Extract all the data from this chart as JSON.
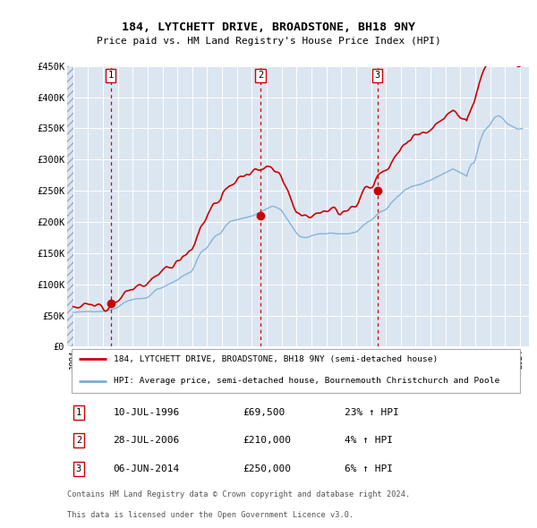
{
  "title": "184, LYTCHETT DRIVE, BROADSTONE, BH18 9NY",
  "subtitle": "Price paid vs. HM Land Registry's House Price Index (HPI)",
  "ylim": [
    0,
    450000
  ],
  "yticks": [
    0,
    50000,
    100000,
    150000,
    200000,
    250000,
    300000,
    350000,
    400000,
    450000
  ],
  "ytick_labels": [
    "£0",
    "£50K",
    "£100K",
    "£150K",
    "£200K",
    "£250K",
    "£300K",
    "£350K",
    "£400K",
    "£450K"
  ],
  "xlim_start": 1993.6,
  "xlim_end": 2024.6,
  "transactions": [
    {
      "num": 1,
      "year": 1996.53,
      "price": 69500,
      "label": "10-JUL-1996",
      "price_str": "£69,500",
      "hpi_str": "23% ↑ HPI"
    },
    {
      "num": 2,
      "year": 2006.57,
      "price": 210000,
      "label": "28-JUL-2006",
      "price_str": "£210,000",
      "hpi_str": "4% ↑ HPI"
    },
    {
      "num": 3,
      "year": 2014.43,
      "price": 250000,
      "label": "06-JUN-2014",
      "price_str": "£250,000",
      "hpi_str": "6% ↑ HPI"
    }
  ],
  "red_line_color": "#cc0000",
  "blue_line_color": "#7bafd4",
  "bg_color": "#dce6f1",
  "grid_color": "#ffffff",
  "legend_label_red": "184, LYTCHETT DRIVE, BROADSTONE, BH18 9NY (semi-detached house)",
  "legend_label_blue": "HPI: Average price, semi-detached house, Bournemouth Christchurch and Poole",
  "footer1": "Contains HM Land Registry data © Crown copyright and database right 2024.",
  "footer2": "This data is licensed under the Open Government Licence v3.0.",
  "hpi_years": [
    1994.0,
    1994.08,
    1994.17,
    1994.25,
    1994.33,
    1994.42,
    1994.5,
    1994.58,
    1994.67,
    1994.75,
    1994.83,
    1994.92,
    1995.0,
    1995.08,
    1995.17,
    1995.25,
    1995.33,
    1995.42,
    1995.5,
    1995.58,
    1995.67,
    1995.75,
    1995.83,
    1995.92,
    1996.0,
    1996.08,
    1996.17,
    1996.25,
    1996.33,
    1996.42,
    1996.5,
    1996.58,
    1996.67,
    1996.75,
    1996.83,
    1996.92,
    1997.0,
    1997.08,
    1997.17,
    1997.25,
    1997.33,
    1997.42,
    1997.5,
    1997.58,
    1997.67,
    1997.75,
    1997.83,
    1997.92,
    1998.0,
    1998.08,
    1998.17,
    1998.25,
    1998.33,
    1998.42,
    1998.5,
    1998.58,
    1998.67,
    1998.75,
    1998.83,
    1998.92,
    1999.0,
    1999.08,
    1999.17,
    1999.25,
    1999.33,
    1999.42,
    1999.5,
    1999.58,
    1999.67,
    1999.75,
    1999.83,
    1999.92,
    2000.0,
    2000.08,
    2000.17,
    2000.25,
    2000.33,
    2000.42,
    2000.5,
    2000.58,
    2000.67,
    2000.75,
    2000.83,
    2000.92,
    2001.0,
    2001.08,
    2001.17,
    2001.25,
    2001.33,
    2001.42,
    2001.5,
    2001.58,
    2001.67,
    2001.75,
    2001.83,
    2001.92,
    2002.0,
    2002.08,
    2002.17,
    2002.25,
    2002.33,
    2002.42,
    2002.5,
    2002.58,
    2002.67,
    2002.75,
    2002.83,
    2002.92,
    2003.0,
    2003.08,
    2003.17,
    2003.25,
    2003.33,
    2003.42,
    2003.5,
    2003.58,
    2003.67,
    2003.75,
    2003.83,
    2003.92,
    2004.0,
    2004.08,
    2004.17,
    2004.25,
    2004.33,
    2004.42,
    2004.5,
    2004.58,
    2004.67,
    2004.75,
    2004.83,
    2004.92,
    2005.0,
    2005.08,
    2005.17,
    2005.25,
    2005.33,
    2005.42,
    2005.5,
    2005.58,
    2005.67,
    2005.75,
    2005.83,
    2005.92,
    2006.0,
    2006.08,
    2006.17,
    2006.25,
    2006.33,
    2006.42,
    2006.5,
    2006.58,
    2006.67,
    2006.75,
    2006.83,
    2006.92,
    2007.0,
    2007.08,
    2007.17,
    2007.25,
    2007.33,
    2007.42,
    2007.5,
    2007.58,
    2007.67,
    2007.75,
    2007.83,
    2007.92,
    2008.0,
    2008.08,
    2008.17,
    2008.25,
    2008.33,
    2008.42,
    2008.5,
    2008.58,
    2008.67,
    2008.75,
    2008.83,
    2008.92,
    2009.0,
    2009.08,
    2009.17,
    2009.25,
    2009.33,
    2009.42,
    2009.5,
    2009.58,
    2009.67,
    2009.75,
    2009.83,
    2009.92,
    2010.0,
    2010.08,
    2010.17,
    2010.25,
    2010.33,
    2010.42,
    2010.5,
    2010.58,
    2010.67,
    2010.75,
    2010.83,
    2010.92,
    2011.0,
    2011.08,
    2011.17,
    2011.25,
    2011.33,
    2011.42,
    2011.5,
    2011.58,
    2011.67,
    2011.75,
    2011.83,
    2011.92,
    2012.0,
    2012.08,
    2012.17,
    2012.25,
    2012.33,
    2012.42,
    2012.5,
    2012.58,
    2012.67,
    2012.75,
    2012.83,
    2012.92,
    2013.0,
    2013.08,
    2013.17,
    2013.25,
    2013.33,
    2013.42,
    2013.5,
    2013.58,
    2013.67,
    2013.75,
    2013.83,
    2013.92,
    2014.0,
    2014.08,
    2014.17,
    2014.25,
    2014.33,
    2014.42,
    2014.5,
    2014.58,
    2014.67,
    2014.75,
    2014.83,
    2014.92,
    2015.0,
    2015.08,
    2015.17,
    2015.25,
    2015.33,
    2015.42,
    2015.5,
    2015.58,
    2015.67,
    2015.75,
    2015.83,
    2015.92,
    2016.0,
    2016.08,
    2016.17,
    2016.25,
    2016.33,
    2016.42,
    2016.5,
    2016.58,
    2016.67,
    2016.75,
    2016.83,
    2016.92,
    2017.0,
    2017.08,
    2017.17,
    2017.25,
    2017.33,
    2017.42,
    2017.5,
    2017.58,
    2017.67,
    2017.75,
    2017.83,
    2017.92,
    2018.0,
    2018.08,
    2018.17,
    2018.25,
    2018.33,
    2018.42,
    2018.5,
    2018.58,
    2018.67,
    2018.75,
    2018.83,
    2018.92,
    2019.0,
    2019.08,
    2019.17,
    2019.25,
    2019.33,
    2019.42,
    2019.5,
    2019.58,
    2019.67,
    2019.75,
    2019.83,
    2019.92,
    2020.0,
    2020.08,
    2020.17,
    2020.25,
    2020.33,
    2020.42,
    2020.5,
    2020.58,
    2020.67,
    2020.75,
    2020.83,
    2020.92,
    2021.0,
    2021.08,
    2021.17,
    2021.25,
    2021.33,
    2021.42,
    2021.5,
    2021.58,
    2021.67,
    2021.75,
    2021.83,
    2021.92,
    2022.0,
    2022.08,
    2022.17,
    2022.25,
    2022.33,
    2022.42,
    2022.5,
    2022.58,
    2022.67,
    2022.75,
    2022.83,
    2022.92,
    2023.0,
    2023.08,
    2023.17,
    2023.25,
    2023.33,
    2023.42,
    2023.5,
    2023.58,
    2023.67,
    2023.75,
    2023.83,
    2023.92,
    2024.0,
    2024.08,
    2024.17
  ],
  "hpi_values": [
    55000,
    55200,
    55400,
    55600,
    55700,
    55800,
    56000,
    56100,
    56200,
    56300,
    56400,
    56500,
    56500,
    56300,
    56200,
    56100,
    56000,
    56000,
    56000,
    56100,
    56200,
    56300,
    56400,
    56500,
    56600,
    56800,
    57000,
    57500,
    58000,
    58500,
    59000,
    59500,
    60000,
    60500,
    61000,
    62000,
    63000,
    64500,
    66000,
    67500,
    69000,
    70500,
    71500,
    72500,
    73500,
    74000,
    74500,
    75000,
    75500,
    76000,
    76500,
    77000,
    77000,
    77000,
    77000,
    77200,
    77400,
    77600,
    77800,
    78000,
    79000,
    80500,
    82000,
    84000,
    86000,
    88000,
    90000,
    91500,
    92500,
    93000,
    93500,
    94000,
    95000,
    96000,
    97000,
    98000,
    99000,
    100000,
    101000,
    102000,
    103000,
    104000,
    105000,
    106000,
    107000,
    108500,
    110000,
    111500,
    113000,
    114000,
    115000,
    116000,
    117000,
    118000,
    119000,
    120000,
    122000,
    126000,
    130000,
    135000,
    140000,
    144000,
    148000,
    151000,
    153000,
    155000,
    156000,
    157000,
    159000,
    162000,
    165000,
    168000,
    171000,
    174000,
    176000,
    178000,
    179000,
    180000,
    181000,
    182000,
    185000,
    188000,
    191000,
    194000,
    196000,
    198000,
    200000,
    201000,
    201500,
    202000,
    202500,
    203000,
    203500,
    204000,
    204500,
    205000,
    205500,
    206000,
    206500,
    207000,
    207500,
    208000,
    208500,
    209000,
    209500,
    210000,
    211000,
    212000,
    213000,
    214000,
    215000,
    216000,
    217000,
    218000,
    219000,
    220000,
    221000,
    222000,
    223000,
    224000,
    225000,
    225000,
    224500,
    224000,
    223000,
    222000,
    221000,
    220000,
    218000,
    215000,
    212000,
    209000,
    206000,
    203000,
    200000,
    197000,
    194000,
    191000,
    188000,
    185000,
    182000,
    180000,
    178000,
    177000,
    176000,
    175500,
    175000,
    175000,
    175000,
    175500,
    176000,
    177000,
    178000,
    178500,
    179000,
    179500,
    180000,
    180500,
    181000,
    181000,
    181000,
    181000,
    181000,
    181000,
    181000,
    181500,
    182000,
    182000,
    182000,
    182000,
    182000,
    181500,
    181000,
    181000,
    181000,
    181000,
    181000,
    181000,
    181000,
    181000,
    181000,
    181000,
    181000,
    181500,
    182000,
    182500,
    183000,
    183500,
    184000,
    185000,
    187000,
    189000,
    191000,
    193000,
    195000,
    196500,
    198000,
    199500,
    200500,
    201500,
    202500,
    204000,
    206000,
    208000,
    210000,
    212000,
    213500,
    215000,
    216500,
    217500,
    218000,
    219000,
    220000,
    222000,
    224000,
    227000,
    230000,
    232000,
    234000,
    236000,
    238000,
    240000,
    241500,
    243000,
    245000,
    247000,
    249000,
    251000,
    252000,
    253000,
    254000,
    255000,
    256000,
    257000,
    257500,
    258000,
    258500,
    259000,
    259500,
    260000,
    260500,
    261000,
    262000,
    263000,
    264000,
    265000,
    265500,
    266000,
    267000,
    268000,
    269000,
    270000,
    271000,
    272000,
    273000,
    274000,
    275000,
    276000,
    277000,
    278000,
    279000,
    280000,
    281000,
    282000,
    283000,
    284000,
    285000,
    284000,
    283000,
    282000,
    281000,
    280000,
    279000,
    278000,
    277000,
    276000,
    275000,
    273000,
    280000,
    285000,
    290000,
    293000,
    294000,
    295000,
    300000,
    308000,
    316000,
    324000,
    330000,
    336000,
    341000,
    345000,
    348000,
    350000,
    352000,
    354000,
    356000,
    360000,
    363000,
    366000,
    368000,
    369000,
    370000,
    370000,
    369000,
    368000,
    366000,
    364000,
    361000,
    359000,
    357000,
    356000,
    355000,
    354000,
    353000,
    352000,
    351000,
    350000,
    349000,
    349000,
    349000,
    349500,
    350000
  ]
}
